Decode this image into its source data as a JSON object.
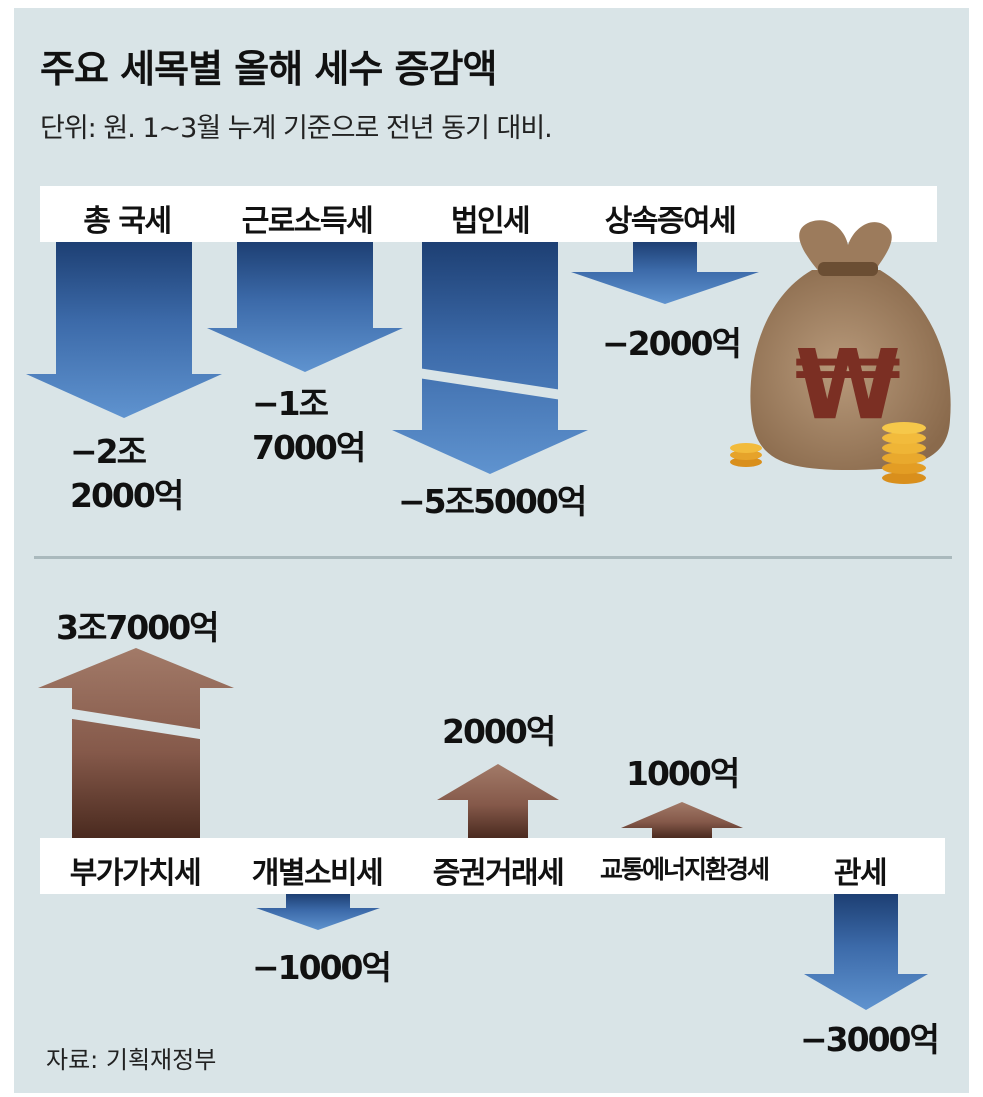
{
  "title": "주요 세목별 올해 세수 증감액",
  "subtitle": "단위: 원. 1~3월 누계 기준으로 전년 동기 대비.",
  "source": "자료: 기획재정부",
  "colors": {
    "background": "#d9e4e7",
    "decrease": "#4b7fbb",
    "increase": "#7a5140",
    "label_bar": "#ffffff"
  },
  "icons": [
    "money-bag-won-icon",
    "gold-coin-stack-icon"
  ],
  "chart_data": [
    {
      "type": "bar",
      "title": "",
      "categories": [
        "총 국세",
        "근로소득세",
        "법인세",
        "상속증여세"
      ],
      "values": [
        -22000,
        -17000,
        -55000,
        -2000
      ],
      "value_labels": [
        "−2조\n2000억",
        "−1조\n7000억",
        "−5조5000억",
        "−2000억"
      ],
      "unit": "억 원"
    },
    {
      "type": "bar",
      "title": "",
      "categories": [
        "부가가치세",
        "개별소비세",
        "증권거래세",
        "교통에너지환경세",
        "관세"
      ],
      "values": [
        37000,
        -1000,
        2000,
        1000,
        -3000
      ],
      "value_labels": [
        "3조7000억",
        "−1000억",
        "2000억",
        "1000억",
        "−3000억"
      ],
      "unit": "억 원"
    }
  ]
}
